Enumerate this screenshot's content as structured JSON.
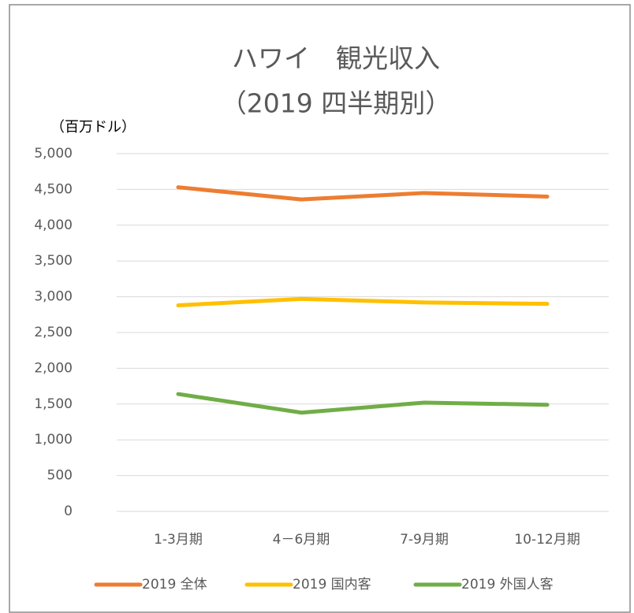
{
  "chart_data": {
    "type": "line",
    "title": "ハワイ　観光収入",
    "subtitle": "（2019 四半期別）",
    "y_label": "（百万ドル）",
    "categories": [
      "1-3月期",
      "4－6月期",
      "7-9月期",
      "10-12月期"
    ],
    "series": [
      {
        "name": "2019 全体",
        "color": "#ED7D31",
        "values": [
          4530,
          4360,
          4450,
          4400
        ]
      },
      {
        "name": "2019 国内客",
        "color": "#FFC000",
        "values": [
          2880,
          2970,
          2920,
          2900
        ]
      },
      {
        "name": "2019 外国人客",
        "color": "#70AD47",
        "values": [
          1640,
          1380,
          1520,
          1490
        ]
      }
    ],
    "ylim": [
      0,
      5000
    ],
    "yticks": [
      0,
      500,
      {
        "value": 1000,
        "label": "1,000"
      },
      {
        "value": 1500,
        "label": "1,500"
      },
      {
        "value": 2000,
        "label": "2,000"
      },
      {
        "value": 2500,
        "label": "2,500"
      },
      {
        "value": 3000,
        "label": "3,000"
      },
      {
        "value": 3500,
        "label": "3,500"
      },
      {
        "value": 4000,
        "label": "4,000"
      },
      {
        "value": 4500,
        "label": "4,500"
      },
      {
        "value": 5000,
        "label": "5,000"
      }
    ],
    "grid": true,
    "legend": "bottom"
  }
}
